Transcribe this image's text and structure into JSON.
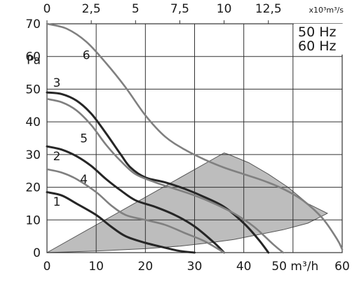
{
  "chart_data": {
    "type": "line",
    "title": "",
    "xlabel": "50 m³/h",
    "ylabel": "Pa",
    "top_axis_label": "x10³m³/s",
    "xlim": [
      0,
      60
    ],
    "ylim": [
      0,
      70
    ],
    "top_xlim": [
      0,
      16.667
    ],
    "x_ticks": [
      "0",
      "10",
      "20",
      "30",
      "40",
      "",
      "60"
    ],
    "x_tick_values": [
      0,
      10,
      20,
      30,
      40,
      50,
      60
    ],
    "y_ticks": [
      "0",
      "10",
      "20",
      "30",
      "40",
      "50",
      "60",
      "70"
    ],
    "y_tick_values": [
      0,
      10,
      20,
      30,
      40,
      50,
      60,
      70
    ],
    "y_label_position_value": 62,
    "top_ticks": [
      "0",
      "2,5",
      "5",
      "7,5",
      "10",
      "12,5"
    ],
    "top_tick_values": [
      0,
      2.5,
      5,
      7.5,
      10,
      12.5
    ],
    "legend_lines": [
      "50 Hz",
      "60 Hz"
    ],
    "legend_placement": "top-right",
    "grid": true,
    "colors": {
      "dark": "#262626",
      "gray": "#808080",
      "region": "#bdbdbd"
    },
    "series": [
      {
        "label": "1",
        "color": "dark",
        "label_at": [
          2,
          15.6
        ],
        "points": [
          [
            0,
            18.5
          ],
          [
            3,
            17.5
          ],
          [
            6,
            15
          ],
          [
            10,
            11.5
          ],
          [
            13,
            8
          ],
          [
            16,
            5
          ],
          [
            20,
            3
          ],
          [
            24,
            1.5
          ],
          [
            27,
            0.5
          ],
          [
            30,
            0
          ]
        ]
      },
      {
        "label": "2",
        "color": "dark",
        "label_at": [
          2,
          29.5
        ],
        "points": [
          [
            0,
            32.5
          ],
          [
            3,
            31.5
          ],
          [
            6,
            29.5
          ],
          [
            9,
            26.5
          ],
          [
            12,
            22.5
          ],
          [
            15,
            19
          ],
          [
            18,
            16
          ],
          [
            22,
            14
          ],
          [
            26,
            11.5
          ],
          [
            30,
            8
          ],
          [
            34,
            3
          ],
          [
            36,
            0
          ]
        ]
      },
      {
        "label": "3",
        "color": "dark",
        "label_at": [
          2,
          52
        ],
        "points": [
          [
            0,
            49
          ],
          [
            3,
            48.5
          ],
          [
            6,
            46.5
          ],
          [
            9,
            42.5
          ],
          [
            12,
            36.5
          ],
          [
            15,
            30
          ],
          [
            17,
            26
          ],
          [
            20,
            23
          ],
          [
            24,
            21.5
          ],
          [
            28,
            19.5
          ],
          [
            32,
            17
          ],
          [
            36,
            14
          ],
          [
            40,
            9
          ],
          [
            43,
            4
          ],
          [
            45,
            0
          ]
        ]
      },
      {
        "label": "4",
        "color": "gray",
        "label_at": [
          7.5,
          22.5
        ],
        "points": [
          [
            0,
            25.5
          ],
          [
            3,
            24.5
          ],
          [
            6,
            22.5
          ],
          [
            10,
            18.5
          ],
          [
            13,
            14.5
          ],
          [
            16,
            11.5
          ],
          [
            20,
            10
          ],
          [
            24,
            8.5
          ],
          [
            28,
            6
          ],
          [
            32,
            3.5
          ],
          [
            36,
            0
          ]
        ]
      },
      {
        "label": "5",
        "color": "gray",
        "label_at": [
          7.5,
          35
        ],
        "points": [
          [
            0,
            47
          ],
          [
            3,
            46
          ],
          [
            6,
            43.5
          ],
          [
            9,
            39
          ],
          [
            12,
            33
          ],
          [
            15,
            28
          ],
          [
            18,
            24
          ],
          [
            22,
            21.5
          ],
          [
            26,
            19.5
          ],
          [
            30,
            17.5
          ],
          [
            34,
            15
          ],
          [
            38,
            12
          ],
          [
            42,
            8
          ],
          [
            46,
            2.5
          ],
          [
            48,
            0
          ]
        ]
      },
      {
        "label": "6",
        "color": "gray",
        "label_at": [
          8,
          60.5
        ],
        "points": [
          [
            0,
            70
          ],
          [
            4,
            68.5
          ],
          [
            8,
            64.5
          ],
          [
            12,
            58
          ],
          [
            16,
            50.5
          ],
          [
            20,
            42
          ],
          [
            24,
            35.5
          ],
          [
            28,
            31.5
          ],
          [
            32,
            28.5
          ],
          [
            36,
            26
          ],
          [
            40,
            24
          ],
          [
            44,
            22
          ],
          [
            48,
            19.5
          ],
          [
            52,
            16
          ],
          [
            56,
            10.5
          ],
          [
            59,
            4
          ],
          [
            60,
            1
          ]
        ]
      }
    ],
    "operating_region": [
      [
        0,
        0
      ],
      [
        36,
        30.5
      ],
      [
        37,
        30
      ],
      [
        41,
        27.5
      ],
      [
        45,
        24
      ],
      [
        49,
        20
      ],
      [
        53,
        15
      ],
      [
        57,
        12
      ],
      [
        53,
        9
      ],
      [
        48,
        7
      ],
      [
        43,
        5.5
      ],
      [
        38,
        4
      ],
      [
        33,
        3
      ],
      [
        27,
        2
      ],
      [
        20,
        1.2
      ],
      [
        10,
        0.5
      ],
      [
        0,
        0
      ]
    ]
  }
}
